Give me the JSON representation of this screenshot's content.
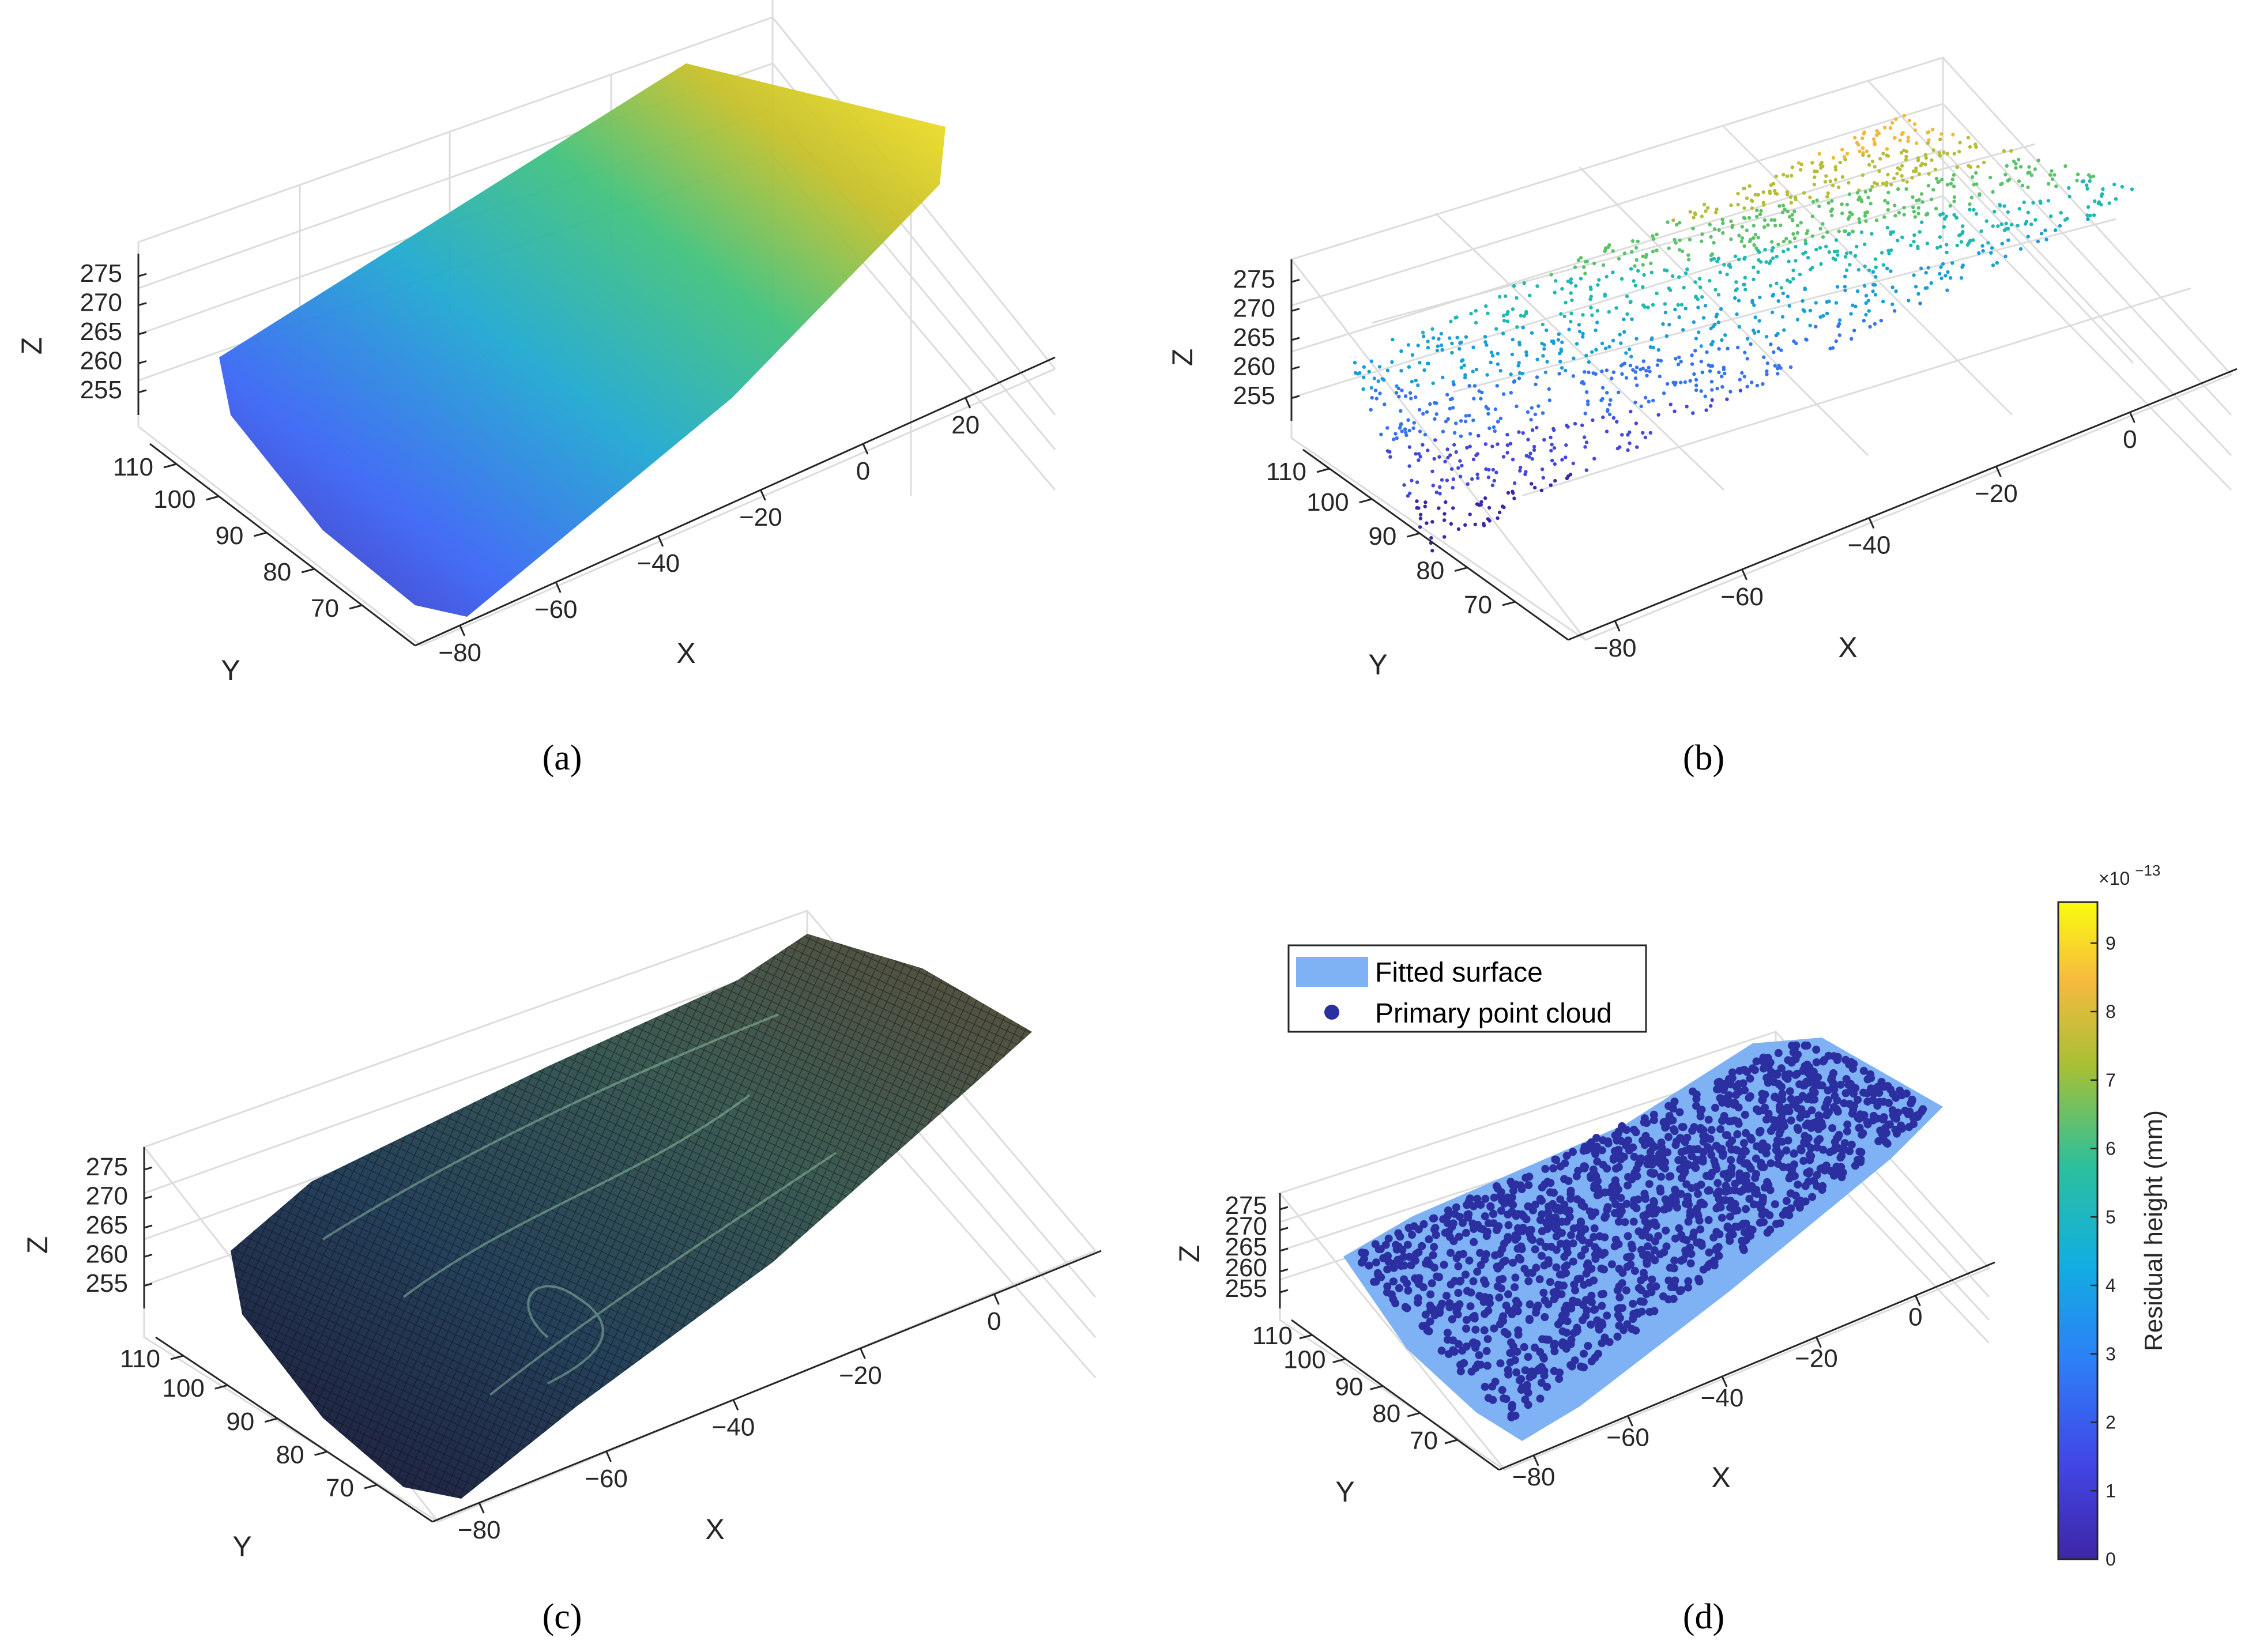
{
  "chart_data": [
    {
      "id": "a",
      "type": "scatter3d",
      "caption": "(a)",
      "xlabel": "X",
      "ylabel": "Y",
      "zlabel": "Z",
      "x_ticks": [
        "−80",
        "−60",
        "−40",
        "−20",
        "0",
        "20"
      ],
      "y_ticks": [
        "70",
        "80",
        "90",
        "100",
        "110"
      ],
      "z_ticks": [
        "255",
        "260",
        "265",
        "270",
        "275"
      ],
      "xlim": [
        -85,
        25
      ],
      "ylim": [
        65,
        115
      ],
      "zlim": [
        252,
        278
      ],
      "colormap": "parula",
      "style": "dense point cloud"
    },
    {
      "id": "b",
      "type": "scatter3d",
      "caption": "(b)",
      "xlabel": "X",
      "ylabel": "Y",
      "zlabel": "Z",
      "x_ticks": [
        "−80",
        "−60",
        "−40",
        "−20",
        "0"
      ],
      "y_ticks": [
        "70",
        "80",
        "90",
        "100",
        "110"
      ],
      "z_ticks": [
        "255",
        "260",
        "265",
        "270",
        "275"
      ],
      "xlim": [
        -85,
        15
      ],
      "ylim": [
        65,
        115
      ],
      "zlim": [
        252,
        278
      ],
      "colormap": "parula",
      "style": "sparse point cloud"
    },
    {
      "id": "c",
      "type": "surface3d",
      "caption": "(c)",
      "xlabel": "X",
      "ylabel": "Y",
      "zlabel": "Z",
      "x_ticks": [
        "−80",
        "−60",
        "−40",
        "−20",
        "0"
      ],
      "y_ticks": [
        "70",
        "80",
        "90",
        "100",
        "110"
      ],
      "z_ticks": [
        "255",
        "260",
        "265",
        "270",
        "275"
      ],
      "xlim": [
        -85,
        15
      ],
      "ylim": [
        65,
        115
      ],
      "zlim": [
        252,
        278
      ],
      "colormap": "parula (dark mesh)",
      "style": "meshed surface"
    },
    {
      "id": "d",
      "type": "surface3d",
      "caption": "(d)",
      "xlabel": "X",
      "ylabel": "Y",
      "zlabel": "Z",
      "x_ticks": [
        "−80",
        "−60",
        "−40",
        "−20",
        "0"
      ],
      "y_ticks": [
        "70",
        "80",
        "90",
        "100",
        "110"
      ],
      "z_ticks": [
        "255",
        "260",
        "265",
        "270",
        "275"
      ],
      "xlim": [
        -85,
        15
      ],
      "ylim": [
        65,
        115
      ],
      "zlim": [
        252,
        278
      ],
      "legend": [
        "Fitted surface",
        "Primary point cloud"
      ],
      "legend_colors": [
        "#7fb2f5",
        "#2b2fa0"
      ],
      "colorbar": {
        "label": "Residual height (mm)",
        "exponent": "×10",
        "exponent_power": "−13",
        "ticks": [
          "0",
          "1",
          "2",
          "3",
          "4",
          "5",
          "6",
          "7",
          "8",
          "9"
        ],
        "range": [
          0,
          9.6
        ]
      }
    }
  ]
}
